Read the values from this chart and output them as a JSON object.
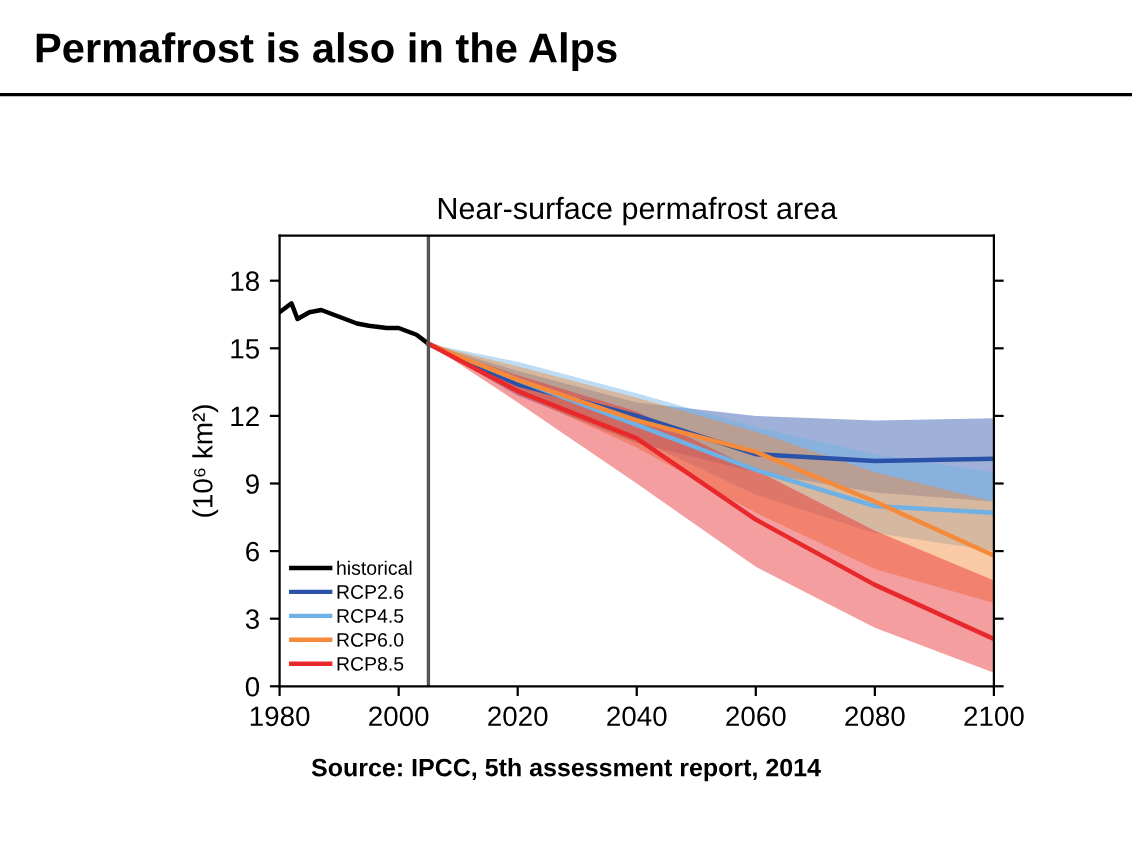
{
  "chart_data": {
    "type": "line",
    "title": "Permafrost is also in the Alps",
    "subtitle": "Near-surface permafrost area",
    "ylabel": "(10⁶ km²)",
    "x": [
      2005,
      2020,
      2040,
      2060,
      2080,
      2100
    ],
    "series": [
      {
        "name": "historical",
        "color": "#000000",
        "x": [
          1980,
          1982,
          1983,
          1985,
          1987,
          1990,
          1993,
          1995,
          1998,
          2000,
          2003,
          2005
        ],
        "values": [
          16.6,
          17.0,
          16.3,
          16.6,
          16.7,
          16.4,
          16.1,
          16.0,
          15.9,
          15.9,
          15.6,
          15.2
        ]
      },
      {
        "name": "RCP2.6",
        "color": "#2a52a8",
        "values": [
          15.2,
          13.4,
          12.0,
          10.3,
          10.0,
          10.1
        ],
        "lower": [
          15.2,
          12.9,
          10.8,
          9.5,
          8.6,
          8.2
        ],
        "upper": [
          15.2,
          14.0,
          12.6,
          12.0,
          11.8,
          11.9
        ]
      },
      {
        "name": "RCP4.5",
        "color": "#6fb1e4",
        "values": [
          15.2,
          13.6,
          11.6,
          9.6,
          8.0,
          7.7
        ],
        "lower": [
          15.2,
          13.2,
          11.0,
          8.5,
          6.8,
          6.0
        ],
        "upper": [
          15.2,
          14.4,
          13.0,
          11.5,
          10.3,
          9.5
        ]
      },
      {
        "name": "RCP6.0",
        "color": "#f58a3a",
        "values": [
          15.2,
          13.6,
          11.8,
          10.4,
          8.2,
          5.8
        ],
        "lower": [
          15.2,
          13.0,
          10.6,
          7.7,
          5.2,
          3.7
        ],
        "upper": [
          15.2,
          14.2,
          12.8,
          11.3,
          9.5,
          8.2
        ]
      },
      {
        "name": "RCP8.5",
        "color": "#e8282a",
        "values": [
          15.2,
          13.1,
          11.0,
          7.4,
          4.5,
          2.1
        ],
        "lower": [
          15.2,
          12.6,
          9.0,
          5.3,
          2.6,
          0.6
        ],
        "upper": [
          15.2,
          13.8,
          12.2,
          9.6,
          6.9,
          4.7
        ]
      }
    ],
    "xlim": [
      1980,
      2100
    ],
    "xticks": [
      1980,
      2000,
      2020,
      2040,
      2060,
      2080,
      2100
    ],
    "ylim": [
      0,
      20
    ],
    "yticks": [
      0,
      3,
      6,
      9,
      12,
      15,
      18
    ],
    "ref_lines": [
      {
        "axis": "x",
        "value": 2005,
        "label": null,
        "color": "#555555"
      }
    ],
    "annotations": [
      "Source: IPCC, 5th assessment report, 2014"
    ],
    "legend": "bottom left",
    "grid": false,
    "marker": "none",
    "line_style": "solid"
  }
}
